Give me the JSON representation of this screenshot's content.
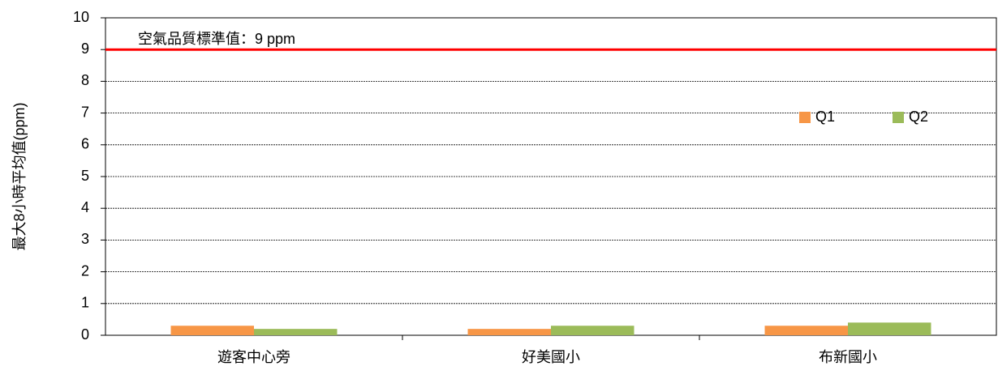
{
  "chart_data": {
    "type": "bar",
    "y_label": "最大8小時平均值(ppm)",
    "categories": [
      "遊客中心旁",
      "好美國小",
      "布新國小"
    ],
    "series": [
      {
        "name": "Q1",
        "color": "#f79646",
        "values": [
          0.3,
          0.2,
          0.3
        ]
      },
      {
        "name": "Q2",
        "color": "#9bbb59",
        "values": [
          0.2,
          0.3,
          0.4
        ]
      }
    ],
    "ylim": [
      0,
      10
    ],
    "yticks": [
      0,
      1,
      2,
      3,
      4,
      5,
      6,
      7,
      8,
      9,
      10
    ],
    "grid": true,
    "legend": "upper right",
    "reference": {
      "value": 9,
      "label": "空氣品質標準值：9 ppm",
      "color": "#ff0000"
    }
  }
}
